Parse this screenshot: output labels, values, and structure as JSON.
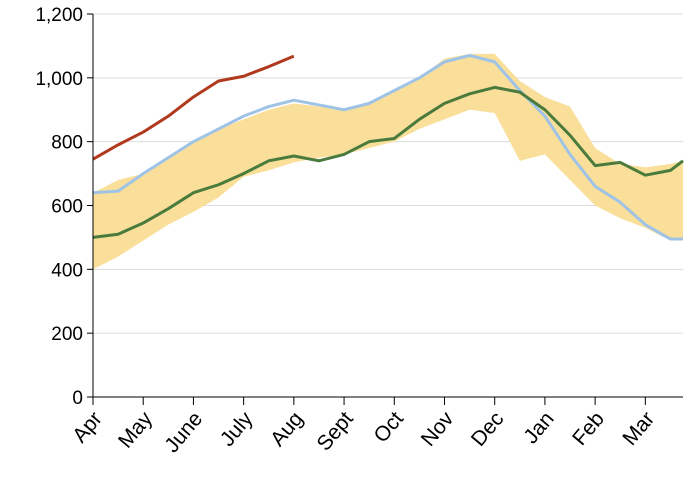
{
  "chart_data": {
    "type": "line",
    "x": [
      0,
      0.5,
      1,
      1.5,
      2,
      2.5,
      3,
      3.5,
      4,
      4.5,
      5,
      5.5,
      6,
      6.5,
      7,
      7.5,
      8,
      8.5,
      9,
      9.5,
      10,
      10.5,
      11,
      11.5,
      11.75
    ],
    "band": {
      "color": "#f9df9a",
      "low": [
        400,
        440,
        490,
        540,
        580,
        625,
        690,
        710,
        735,
        750,
        760,
        780,
        800,
        840,
        870,
        900,
        890,
        740,
        760,
        680,
        600,
        560,
        530,
        490,
        500
      ],
      "high": [
        640,
        680,
        700,
        750,
        800,
        840,
        870,
        900,
        920,
        910,
        905,
        920,
        960,
        1000,
        1060,
        1075,
        1075,
        990,
        940,
        910,
        780,
        730,
        720,
        730,
        740
      ]
    },
    "series": [
      {
        "color": "#9fc3e7",
        "values": [
          640,
          645,
          700,
          750,
          800,
          840,
          880,
          910,
          930,
          915,
          900,
          920,
          960,
          1000,
          1050,
          1070,
          1050,
          960,
          880,
          760,
          660,
          610,
          540,
          495,
          495
        ]
      },
      {
        "color": "#4a7a3c",
        "values": [
          500,
          510,
          545,
          590,
          640,
          665,
          700,
          740,
          755,
          740,
          760,
          800,
          810,
          870,
          920,
          950,
          970,
          955,
          900,
          820,
          725,
          735,
          695,
          710,
          740
        ]
      },
      {
        "color": "#b0391e",
        "values": [
          745,
          790,
          830,
          880,
          940,
          990,
          1005,
          1035,
          1068,
          null,
          null,
          null,
          null,
          null,
          null,
          null,
          null,
          null,
          null,
          null,
          null,
          null,
          null,
          null,
          null
        ]
      }
    ],
    "xlim": [
      0,
      11.75
    ],
    "xticks": [
      {
        "value": 0,
        "label": "Apr"
      },
      {
        "value": 1,
        "label": "May"
      },
      {
        "value": 2,
        "label": "June"
      },
      {
        "value": 3,
        "label": "July"
      },
      {
        "value": 4,
        "label": "Aug"
      },
      {
        "value": 5,
        "label": "Sept"
      },
      {
        "value": 6,
        "label": "Oct"
      },
      {
        "value": 7,
        "label": "Nov"
      },
      {
        "value": 8,
        "label": "Dec"
      },
      {
        "value": 9,
        "label": "Jan"
      },
      {
        "value": 10,
        "label": "Feb"
      },
      {
        "value": 11,
        "label": "Mar"
      }
    ],
    "ylim": [
      0,
      1200
    ],
    "yticks": [
      0,
      200,
      400,
      600,
      800,
      {
        "value": 1000,
        "label": "1,000"
      },
      {
        "value": 1200,
        "label": "1,200"
      }
    ],
    "grid": true
  }
}
